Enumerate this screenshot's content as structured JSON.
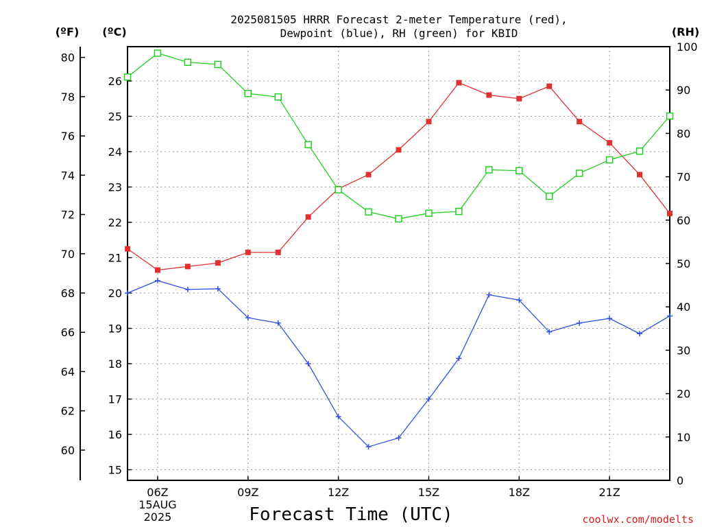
{
  "chart_data": {
    "type": "line",
    "title": [
      "2025081505 HRRR Forecast 2-meter Temperature (red),",
      "Dewpoint (blue), RH (green) for KBID"
    ],
    "xlabel": "Forecast Time (UTC)",
    "unit_labels": {
      "fahrenheit": "(ºF)",
      "celsius": "(ºC)",
      "rh": "(RH)"
    },
    "x_hours": [
      5,
      6,
      7,
      8,
      9,
      10,
      11,
      12,
      13,
      14,
      15,
      16,
      17,
      18,
      19,
      20,
      21,
      22,
      23
    ],
    "x_ticks": [
      {
        "hour": 6,
        "label": [
          "06Z",
          "15AUG",
          "2025"
        ]
      },
      {
        "hour": 9,
        "label": [
          "09Z"
        ]
      },
      {
        "hour": 12,
        "label": [
          "12Z"
        ]
      },
      {
        "hour": 15,
        "label": [
          "15Z"
        ]
      },
      {
        "hour": 18,
        "label": [
          "18Z"
        ]
      },
      {
        "hour": 21,
        "label": [
          "21Z"
        ]
      }
    ],
    "xlim": [
      5,
      23
    ],
    "celsius_axis": {
      "ticks": [
        15,
        16,
        17,
        18,
        19,
        20,
        21,
        22,
        23,
        24,
        25,
        26
      ],
      "lim": [
        14.7,
        26.97
      ]
    },
    "fahrenheit_axis": {
      "ticks": [
        60,
        62,
        64,
        66,
        68,
        70,
        72,
        74,
        76,
        78,
        80
      ]
    },
    "rh_axis": {
      "ticks": [
        0,
        10,
        20,
        30,
        40,
        50,
        60,
        70,
        80,
        90,
        100
      ],
      "lim": [
        0,
        100
      ]
    },
    "series": [
      {
        "name": "Temperature (red)",
        "axis": "celsius",
        "color": "#e03030",
        "marker": "filled-square",
        "values": [
          21.25,
          20.65,
          20.75,
          20.85,
          21.15,
          21.15,
          22.15,
          22.95,
          23.35,
          24.05,
          24.85,
          25.95,
          25.6,
          25.5,
          25.85,
          24.85,
          24.25,
          23.35,
          22.25
        ]
      },
      {
        "name": "Dewpoint (blue)",
        "axis": "celsius",
        "color": "#3050e0",
        "marker": "plus",
        "values": [
          20.0,
          20.35,
          20.1,
          20.12,
          19.3,
          19.15,
          18.0,
          16.5,
          15.65,
          15.9,
          17.0,
          18.15,
          19.95,
          19.8,
          18.9,
          19.15,
          19.28,
          18.85,
          19.35
        ]
      },
      {
        "name": "RH (green)",
        "axis": "rh",
        "color": "#20d020",
        "marker": "open-square",
        "values": [
          93,
          98.5,
          96.4,
          95.9,
          89.2,
          88.4,
          77.4,
          67.0,
          61.9,
          60.3,
          61.6,
          62.0,
          71.6,
          71.4,
          65.5,
          70.8,
          73.9,
          75.9,
          84.0
        ]
      }
    ],
    "grid": true,
    "credit": "coolwx.com/modelts"
  }
}
